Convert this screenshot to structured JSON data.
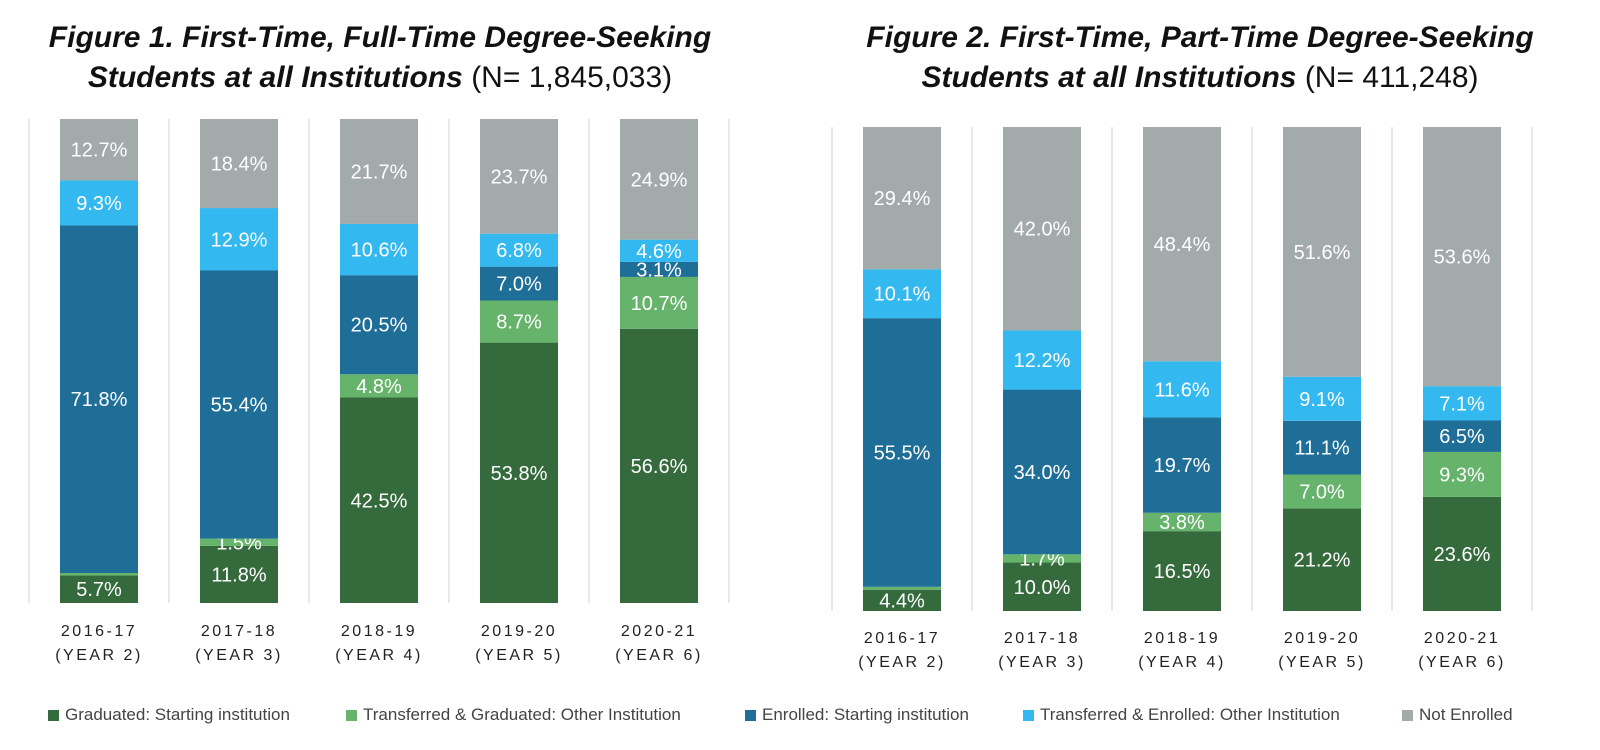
{
  "figures": [
    {
      "title": "Figure 1. First-Time, Full-Time Degree-Seeking Students at all Institutions",
      "title_line1": "Figure 1. First-Time, Full-Time Degree-Seeking",
      "title_line2": "Students at all Institutions",
      "n_label": "(N= 1,845,033)"
    },
    {
      "title": "Figure 2. First-Time, Part-Time Degree-Seeking Students at all Institutions",
      "title_line1": "Figure 2. First-Time, Part-Time Degree-Seeking",
      "title_line2": "Students at all Institutions",
      "n_label": "(N= 411,248)"
    }
  ],
  "legend": [
    {
      "label": "Graduated: Starting institution",
      "color": "#356b3c"
    },
    {
      "label": "Transferred & Graduated: Other Institution",
      "color": "#66b36b"
    },
    {
      "label": "Enrolled: Starting institution",
      "color": "#1f6e98"
    },
    {
      "label": "Transferred & Enrolled: Other Institution",
      "color": "#33b8f0"
    },
    {
      "label": "Not Enrolled",
      "color": "#a3aaaa"
    }
  ],
  "chart_data": [
    {
      "type": "bar",
      "stacked": true,
      "title": "Figure 1. First-Time, Full-Time Degree-Seeking Students at all Institutions (N= 1,845,033)",
      "categories": [
        "2016-17",
        "2017-18",
        "2018-19",
        "2019-20",
        "2020-21"
      ],
      "category_sublabels": [
        "(Year 2)",
        "(Year 3)",
        "(Year 4)",
        "(Year 5)",
        "(Year 6)"
      ],
      "ylim": [
        0,
        100
      ],
      "grid": false,
      "legend_position": "bottom",
      "series": [
        {
          "name": "Graduated: Starting institution",
          "values": [
            5.7,
            11.8,
            42.5,
            53.8,
            56.6
          ],
          "labels": [
            "5.7%",
            "11.8%",
            "42.5%",
            "53.8%",
            "56.6%"
          ]
        },
        {
          "name": "Transferred & Graduated: Other Institution",
          "values": [
            0.5,
            1.5,
            4.8,
            8.7,
            10.7
          ],
          "labels": [
            "",
            "1.5%",
            "4.8%",
            "8.7%",
            "10.7%"
          ]
        },
        {
          "name": "Enrolled: Starting institution",
          "values": [
            71.8,
            55.4,
            20.5,
            7.0,
            3.1
          ],
          "labels": [
            "71.8%",
            "55.4%",
            "20.5%",
            "7.0%",
            "3.1%"
          ]
        },
        {
          "name": "Transferred & Enrolled: Other Institution",
          "values": [
            9.3,
            12.9,
            10.6,
            6.8,
            4.6
          ],
          "labels": [
            "9.3%",
            "12.9%",
            "10.6%",
            "6.8%",
            "4.6%"
          ]
        },
        {
          "name": "Not Enrolled",
          "values": [
            12.7,
            18.4,
            21.7,
            23.7,
            24.9
          ],
          "labels": [
            "12.7%",
            "18.4%",
            "21.7%",
            "23.7%",
            "24.9%"
          ]
        }
      ]
    },
    {
      "type": "bar",
      "stacked": true,
      "title": "Figure 2. First-Time, Part-Time Degree-Seeking Students at all Institutions (N= 411,248)",
      "categories": [
        "2016-17",
        "2017-18",
        "2018-19",
        "2019-20",
        "2020-21"
      ],
      "category_sublabels": [
        "(Year 2)",
        "(Year 3)",
        "(Year 4)",
        "(Year 5)",
        "(Year 6)"
      ],
      "ylim": [
        0,
        100
      ],
      "grid": false,
      "legend_position": "bottom",
      "series": [
        {
          "name": "Graduated: Starting institution",
          "values": [
            4.4,
            10.0,
            16.5,
            21.2,
            23.6
          ],
          "labels": [
            "4.4%",
            "10.0%",
            "16.5%",
            "21.2%",
            "23.6%"
          ]
        },
        {
          "name": "Transferred & Graduated: Other Institution",
          "values": [
            0.6,
            1.7,
            3.8,
            7.0,
            9.3
          ],
          "labels": [
            "",
            "1.7%",
            "3.8%",
            "7.0%",
            "9.3%"
          ]
        },
        {
          "name": "Enrolled: Starting institution",
          "values": [
            55.5,
            34.0,
            19.7,
            11.1,
            6.5
          ],
          "labels": [
            "55.5%",
            "34.0%",
            "19.7%",
            "11.1%",
            "6.5%"
          ]
        },
        {
          "name": "Transferred & Enrolled: Other Institution",
          "values": [
            10.1,
            12.2,
            11.6,
            9.1,
            7.1
          ],
          "labels": [
            "10.1%",
            "12.2%",
            "11.6%",
            "9.1%",
            "7.1%"
          ]
        },
        {
          "name": "Not Enrolled",
          "values": [
            29.4,
            42.0,
            48.4,
            51.6,
            53.6
          ],
          "labels": [
            "29.4%",
            "42.0%",
            "48.4%",
            "51.6%",
            "53.6%"
          ]
        }
      ]
    }
  ]
}
